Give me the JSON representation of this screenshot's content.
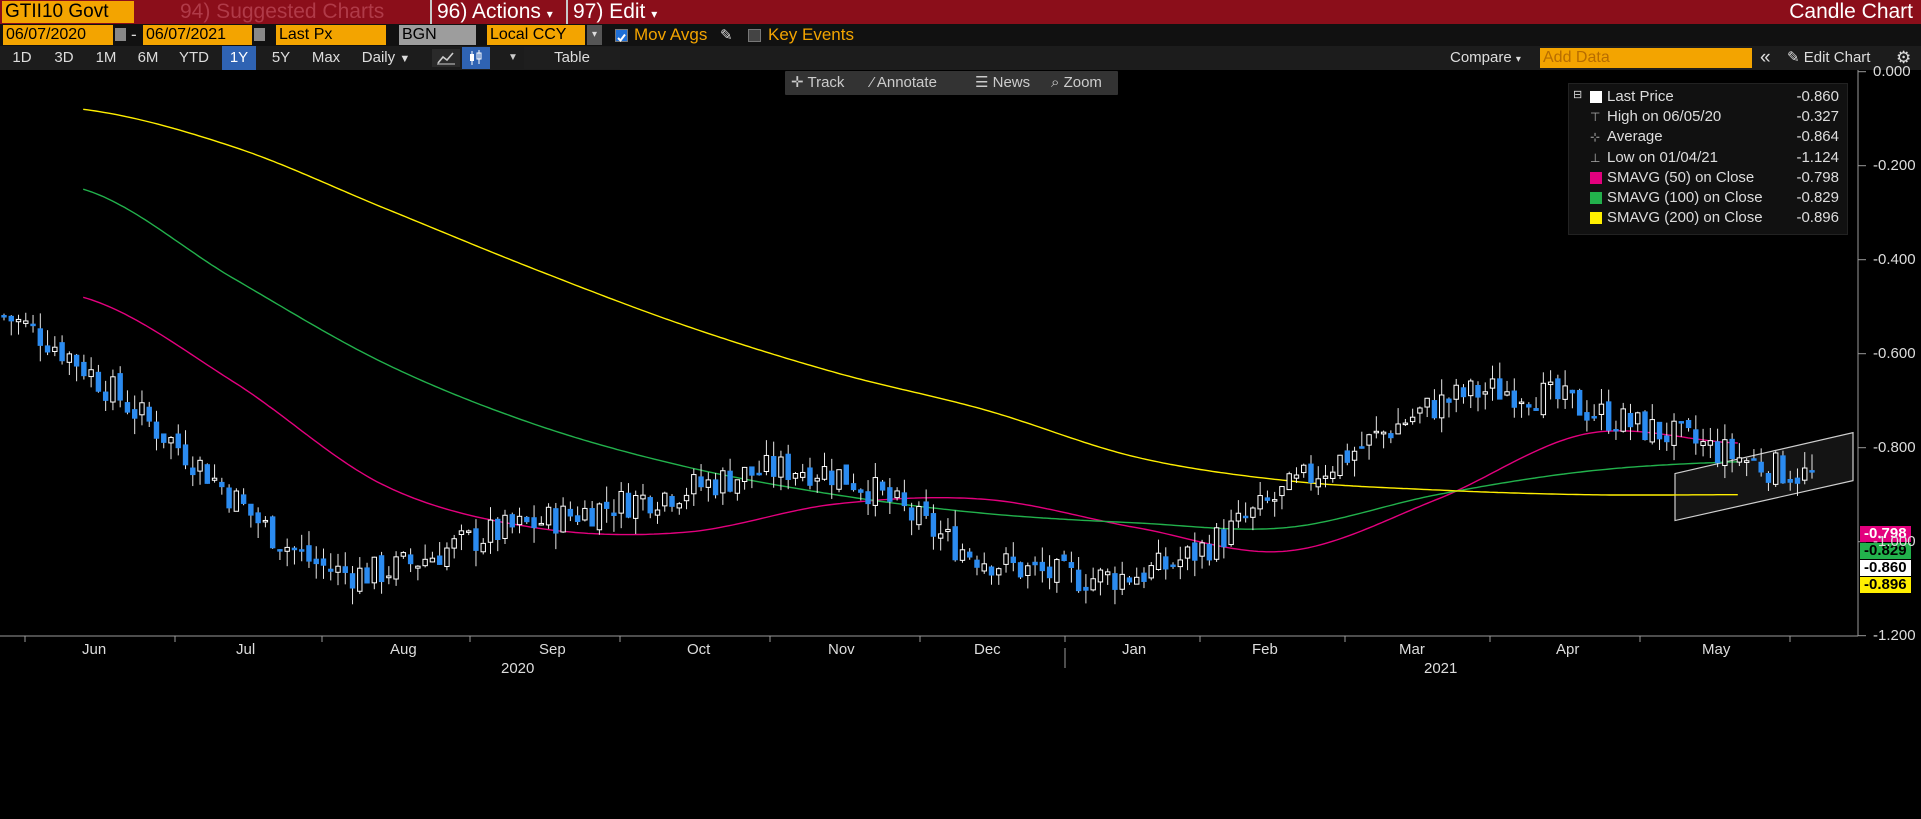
{
  "header": {
    "ticker": "GTII10 Govt",
    "menu_suggested": "94) Suggested Charts",
    "menu_actions": "96) Actions",
    "menu_edit": "97) Edit",
    "chart_type": "Candle Chart"
  },
  "controls": {
    "start_date": "06/07/2020",
    "end_date": "06/07/2021",
    "field": "Last Px",
    "source": "BGN",
    "currency": "Local CCY",
    "mov_avgs_label": "Mov Avgs",
    "key_events_label": "Key Events",
    "mov_avgs_checked": true,
    "key_events_checked": false
  },
  "toolbar": {
    "ranges": [
      "1D",
      "3D",
      "1M",
      "6M",
      "YTD",
      "1Y",
      "5Y",
      "Max"
    ],
    "selected_range": "1Y",
    "frequency": "Daily",
    "table_label": "Table",
    "compare_label": "Compare",
    "add_data_placeholder": "Add Data",
    "edit_chart_label": "Edit Chart"
  },
  "chart_tools": [
    "Track",
    "Annotate",
    "News",
    "Zoom"
  ],
  "legend": [
    {
      "label": "Last Price",
      "value": "-0.860",
      "color": "#ffffff",
      "marker": "square"
    },
    {
      "label": "High on 06/05/20",
      "value": "-0.327",
      "color": "#aaaaaa",
      "marker": "high"
    },
    {
      "label": "Average",
      "value": "-0.864",
      "color": "#aaaaaa",
      "marker": "avg"
    },
    {
      "label": "Low on 01/04/21",
      "value": "-1.124",
      "color": "#aaaaaa",
      "marker": "low"
    },
    {
      "label": "SMAVG (50)  on Close",
      "value": "-0.798",
      "color": "#e3007e",
      "marker": "square"
    },
    {
      "label": "SMAVG (100)  on Close",
      "value": "-0.829",
      "color": "#22b14c",
      "marker": "square"
    },
    {
      "label": "SMAVG (200)  on Close",
      "value": "-0.896",
      "color": "#ffef00",
      "marker": "square"
    }
  ],
  "price_tags": [
    {
      "value": "-0.798",
      "bg": "#e3007e",
      "fg": "#ffffff"
    },
    {
      "value": "-0.829",
      "bg": "#22b14c",
      "fg": "#000000"
    },
    {
      "value": "-0.860",
      "bg": "#ffffff",
      "fg": "#000000"
    },
    {
      "value": "-0.896",
      "bg": "#ffef00",
      "fg": "#000000"
    }
  ],
  "chart_data": {
    "type": "candlestick",
    "title": "",
    "y_ticks": [
      "0.000",
      "-0.200",
      "-0.400",
      "-0.600",
      "-0.800",
      "-1.000",
      "-1.200"
    ],
    "ylim": [
      -1.2,
      0.0
    ],
    "x_months": [
      "Jun",
      "Jul",
      "Aug",
      "Sep",
      "Oct",
      "Nov",
      "Dec",
      "Jan",
      "Feb",
      "Mar",
      "Apr",
      "May"
    ],
    "x_years": [
      "2020",
      "2021"
    ],
    "series": [
      {
        "name": "Last Price",
        "color": "#ffffff",
        "x": [
          "2020-06",
          "2020-07",
          "2020-08",
          "2020-09",
          "2020-10",
          "2020-11",
          "2020-12",
          "2021-01",
          "2021-02",
          "2021-03",
          "2021-04",
          "2021-05"
        ],
        "values": [
          -0.52,
          -0.78,
          -1.06,
          -0.98,
          -0.9,
          -0.85,
          -1.04,
          -1.06,
          -0.85,
          -0.68,
          -0.76,
          -0.86
        ]
      },
      {
        "name": "SMAVG (50) on Close",
        "color": "#e3007e",
        "x": [
          "2020-06",
          "2020-07",
          "2020-08",
          "2020-09",
          "2020-10",
          "2020-11",
          "2020-12",
          "2021-01",
          "2021-02",
          "2021-03",
          "2021-04",
          "2021-05"
        ],
        "values": [
          -0.48,
          -0.66,
          -0.88,
          -0.97,
          -0.98,
          -0.92,
          -0.91,
          -0.97,
          -1.02,
          -0.91,
          -0.77,
          -0.79
        ]
      },
      {
        "name": "SMAVG (100) on Close",
        "color": "#22b14c",
        "x": [
          "2020-06",
          "2020-07",
          "2020-08",
          "2020-09",
          "2020-10",
          "2020-11",
          "2020-12",
          "2021-01",
          "2021-02",
          "2021-03",
          "2021-04",
          "2021-05"
        ],
        "values": [
          -0.25,
          -0.44,
          -0.62,
          -0.75,
          -0.84,
          -0.9,
          -0.94,
          -0.96,
          -0.97,
          -0.9,
          -0.85,
          -0.83
        ]
      },
      {
        "name": "SMAVG (200) on Close",
        "color": "#ffef00",
        "x": [
          "2020-06",
          "2020-07",
          "2020-08",
          "2020-09",
          "2020-10",
          "2020-11",
          "2020-12",
          "2021-01",
          "2021-02",
          "2021-03",
          "2021-04",
          "2021-05"
        ],
        "values": [
          -0.08,
          -0.16,
          -0.29,
          -0.42,
          -0.54,
          -0.64,
          -0.72,
          -0.82,
          -0.87,
          -0.89,
          -0.9,
          -0.9
        ]
      }
    ],
    "high": {
      "date": "06/05/20",
      "value": -0.327
    },
    "low": {
      "date": "01/04/21",
      "value": -1.124
    },
    "average": -0.864,
    "last": -0.86,
    "grid": false,
    "legend_position": "top-right"
  }
}
